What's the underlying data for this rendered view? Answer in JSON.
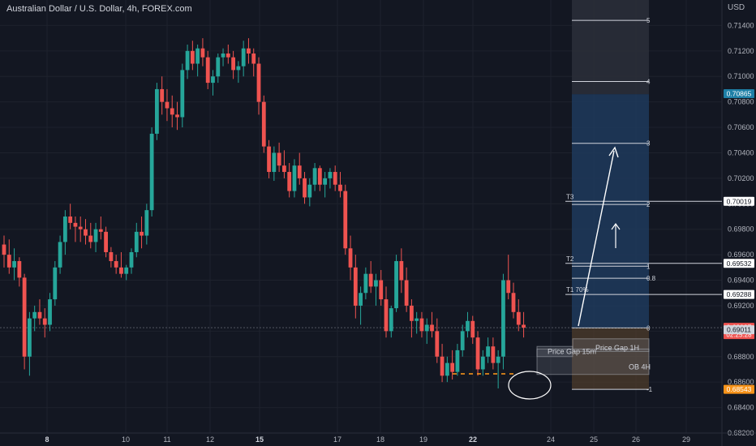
{
  "title": "Australian Dollar / U.S. Dollar, 4h, FOREX.com",
  "currency": "USD",
  "colors": {
    "background": "#131722",
    "grid": "#1e222d",
    "up": "#26a69a",
    "down": "#ef5350",
    "fib_top_zone": "#2a2e39",
    "fib_blue_zone": "#1f3a5c",
    "fib_bottom_zone": "#4a3a2a",
    "orange_tag": "#f7931a",
    "blue_tag": "#2962ff",
    "teal_tag": "#1e7fa6"
  },
  "chart_data": {
    "type": "candlestick",
    "xaxis": {
      "tick_labels": [
        "8",
        "10",
        "11",
        "12",
        "15",
        "17",
        "18",
        "19",
        "22",
        "24",
        "25",
        "26",
        "29"
      ],
      "bold_labels": [
        "8",
        "15",
        "22"
      ]
    },
    "yaxis": {
      "ylim": [
        0.682,
        0.716
      ],
      "tick_labels": [
        "0.71400",
        "0.71200",
        "0.71000",
        "0.70800",
        "0.70600",
        "0.70400",
        "0.70200",
        "0.70000",
        "0.69800",
        "0.69600",
        "0.69400",
        "0.69200",
        "0.69000",
        "0.68800",
        "0.68600",
        "0.68400",
        "0.68200"
      ]
    },
    "price_labels": [
      {
        "text": "0.70865",
        "value": 0.70865,
        "color": "#1e7fa6"
      },
      {
        "text": "0.70019",
        "value": 0.70019,
        "color": "#ffffff"
      },
      {
        "text": "0.69532",
        "value": 0.69532,
        "color": "#ffffff"
      },
      {
        "text": "0.69288",
        "value": 0.69288,
        "color": "#ffffff"
      },
      {
        "text": "0.69027",
        "value": 0.69027,
        "color": "#ef5350",
        "subtext": "02:25:28"
      },
      {
        "text": "0.69011",
        "value": 0.69011,
        "color": "#d1d4dc"
      },
      {
        "text": "0.68543",
        "value": 0.68543,
        "color": "#f7931a"
      }
    ],
    "fib_levels": [
      {
        "label": "5",
        "value": 0.7144
      },
      {
        "label": "4",
        "value": 0.7096
      },
      {
        "label": "3",
        "value": 0.70475
      },
      {
        "label": "2",
        "value": 0.69995
      },
      {
        "label": "1",
        "value": 0.6951
      },
      {
        "label": "0.8",
        "value": 0.69415
      },
      {
        "label": "0",
        "value": 0.69025
      },
      {
        "label": "-1",
        "value": 0.68543
      }
    ],
    "targets": [
      {
        "label": "T3",
        "value": 0.70019
      },
      {
        "label": "T2",
        "value": 0.69532
      },
      {
        "label": "T1 70%",
        "value": 0.69288
      }
    ],
    "zones": [
      {
        "label": "Price Gap 15m",
        "top": 0.6888,
        "bottom": 0.688
      },
      {
        "label": "Price Gap 1H",
        "top": 0.6894,
        "bottom": 0.6884
      },
      {
        "label": "OB 4H",
        "top": 0.6886,
        "bottom": 0.6866
      }
    ],
    "candles": [
      [
        0.6968,
        0.6975,
        0.695,
        0.696
      ],
      [
        0.696,
        0.6972,
        0.6945,
        0.695
      ],
      [
        0.695,
        0.6965,
        0.694,
        0.6955
      ],
      [
        0.6955,
        0.6958,
        0.6935,
        0.6942
      ],
      [
        0.6942,
        0.6945,
        0.687,
        0.688
      ],
      [
        0.688,
        0.6915,
        0.6865,
        0.691
      ],
      [
        0.691,
        0.692,
        0.69,
        0.6915
      ],
      [
        0.6915,
        0.6925,
        0.6905,
        0.691
      ],
      [
        0.691,
        0.6918,
        0.6895,
        0.6905
      ],
      [
        0.6905,
        0.693,
        0.69,
        0.6925
      ],
      [
        0.6925,
        0.6955,
        0.692,
        0.695
      ],
      [
        0.695,
        0.6975,
        0.6945,
        0.697
      ],
      [
        0.697,
        0.6995,
        0.696,
        0.699
      ],
      [
        0.699,
        0.7,
        0.698,
        0.6985
      ],
      [
        0.6985,
        0.699,
        0.697,
        0.6982
      ],
      [
        0.6982,
        0.699,
        0.697,
        0.698
      ],
      [
        0.698,
        0.6988,
        0.6968,
        0.6975
      ],
      [
        0.6975,
        0.6985,
        0.6965,
        0.697
      ],
      [
        0.697,
        0.6985,
        0.6962,
        0.698
      ],
      [
        0.698,
        0.699,
        0.6972,
        0.6978
      ],
      [
        0.6978,
        0.6982,
        0.6958,
        0.6962
      ],
      [
        0.6962,
        0.6966,
        0.695,
        0.6955
      ],
      [
        0.6955,
        0.696,
        0.6945,
        0.695
      ],
      [
        0.695,
        0.6962,
        0.6942,
        0.6945
      ],
      [
        0.6945,
        0.6952,
        0.694,
        0.695
      ],
      [
        0.695,
        0.6965,
        0.6945,
        0.6962
      ],
      [
        0.6962,
        0.6985,
        0.6958,
        0.6978
      ],
      [
        0.6978,
        0.699,
        0.6965,
        0.6975
      ],
      [
        0.6975,
        0.7,
        0.6968,
        0.6995
      ],
      [
        0.6995,
        0.706,
        0.699,
        0.7055
      ],
      [
        0.7055,
        0.7095,
        0.705,
        0.709
      ],
      [
        0.709,
        0.71,
        0.707,
        0.708
      ],
      [
        0.708,
        0.709,
        0.7065,
        0.7075
      ],
      [
        0.7075,
        0.7085,
        0.706,
        0.707
      ],
      [
        0.707,
        0.708,
        0.7058,
        0.7068
      ],
      [
        0.7068,
        0.711,
        0.706,
        0.7105
      ],
      [
        0.7105,
        0.7125,
        0.7098,
        0.712
      ],
      [
        0.712,
        0.7128,
        0.7105,
        0.711
      ],
      [
        0.711,
        0.7125,
        0.71,
        0.7122
      ],
      [
        0.7122,
        0.713,
        0.7108,
        0.7115
      ],
      [
        0.7115,
        0.712,
        0.709,
        0.7095
      ],
      [
        0.7095,
        0.7105,
        0.7085,
        0.71
      ],
      [
        0.71,
        0.7118,
        0.7095,
        0.7115
      ],
      [
        0.7115,
        0.7122,
        0.7108,
        0.7118
      ],
      [
        0.7118,
        0.7125,
        0.711,
        0.7115
      ],
      [
        0.7115,
        0.712,
        0.7098,
        0.7105
      ],
      [
        0.7105,
        0.7112,
        0.7095,
        0.7108
      ],
      [
        0.7108,
        0.7128,
        0.71,
        0.7122
      ],
      [
        0.7122,
        0.713,
        0.711,
        0.7118
      ],
      [
        0.7118,
        0.7122,
        0.71,
        0.711
      ],
      [
        0.711,
        0.7115,
        0.707,
        0.708
      ],
      [
        0.708,
        0.7085,
        0.704,
        0.7045
      ],
      [
        0.7045,
        0.705,
        0.702,
        0.7025
      ],
      [
        0.7025,
        0.7045,
        0.7018,
        0.704
      ],
      [
        0.704,
        0.7048,
        0.7025,
        0.703
      ],
      [
        0.703,
        0.7042,
        0.702,
        0.7025
      ],
      [
        0.7025,
        0.7032,
        0.7005,
        0.701
      ],
      [
        0.701,
        0.7035,
        0.7005,
        0.703
      ],
      [
        0.703,
        0.704,
        0.7015,
        0.702
      ],
      [
        0.702,
        0.7025,
        0.7,
        0.7005
      ],
      [
        0.7005,
        0.702,
        0.6998,
        0.7015
      ],
      [
        0.7015,
        0.7032,
        0.701,
        0.7028
      ],
      [
        0.7028,
        0.703,
        0.701,
        0.7015
      ],
      [
        0.7015,
        0.7025,
        0.7005,
        0.702
      ],
      [
        0.702,
        0.7028,
        0.7012,
        0.7025
      ],
      [
        0.7025,
        0.703,
        0.701,
        0.7015
      ],
      [
        0.7015,
        0.7025,
        0.7005,
        0.701
      ],
      [
        0.701,
        0.7015,
        0.696,
        0.6965
      ],
      [
        0.6965,
        0.6975,
        0.694,
        0.695
      ],
      [
        0.695,
        0.696,
        0.691,
        0.692
      ],
      [
        0.692,
        0.6935,
        0.6905,
        0.693
      ],
      [
        0.693,
        0.695,
        0.6925,
        0.6945
      ],
      [
        0.6945,
        0.6955,
        0.693,
        0.6935
      ],
      [
        0.6935,
        0.6945,
        0.692,
        0.694
      ],
      [
        0.694,
        0.6948,
        0.692,
        0.6925
      ],
      [
        0.6925,
        0.6935,
        0.6895,
        0.69
      ],
      [
        0.69,
        0.692,
        0.6895,
        0.6918
      ],
      [
        0.6918,
        0.696,
        0.6915,
        0.6955
      ],
      [
        0.6955,
        0.6965,
        0.693,
        0.694
      ],
      [
        0.694,
        0.695,
        0.6915,
        0.692
      ],
      [
        0.692,
        0.6925,
        0.6895,
        0.6908
      ],
      [
        0.6908,
        0.6915,
        0.6898,
        0.691
      ],
      [
        0.691,
        0.6915,
        0.6895,
        0.69
      ],
      [
        0.69,
        0.691,
        0.689,
        0.6905
      ],
      [
        0.6905,
        0.6915,
        0.6895,
        0.69
      ],
      [
        0.69,
        0.691,
        0.6875,
        0.688
      ],
      [
        0.688,
        0.689,
        0.686,
        0.6865
      ],
      [
        0.6865,
        0.688,
        0.686,
        0.6875
      ],
      [
        0.6875,
        0.6885,
        0.6862,
        0.6868
      ],
      [
        0.6868,
        0.689,
        0.6865,
        0.6885
      ],
      [
        0.6885,
        0.6905,
        0.688,
        0.69
      ],
      [
        0.69,
        0.6915,
        0.6895,
        0.6908
      ],
      [
        0.6908,
        0.6912,
        0.689,
        0.6895
      ],
      [
        0.6895,
        0.69,
        0.6865,
        0.687
      ],
      [
        0.687,
        0.6885,
        0.6865,
        0.688
      ],
      [
        0.688,
        0.6895,
        0.6875,
        0.6888
      ],
      [
        0.6888,
        0.6895,
        0.687,
        0.6875
      ],
      [
        0.6875,
        0.6885,
        0.6855,
        0.688
      ],
      [
        0.688,
        0.6945,
        0.687,
        0.694
      ],
      [
        0.694,
        0.696,
        0.6925,
        0.693
      ],
      [
        0.693,
        0.6938,
        0.691,
        0.6915
      ],
      [
        0.6915,
        0.6925,
        0.69,
        0.6905
      ],
      [
        0.6905,
        0.6915,
        0.6895,
        0.69027
      ]
    ]
  }
}
